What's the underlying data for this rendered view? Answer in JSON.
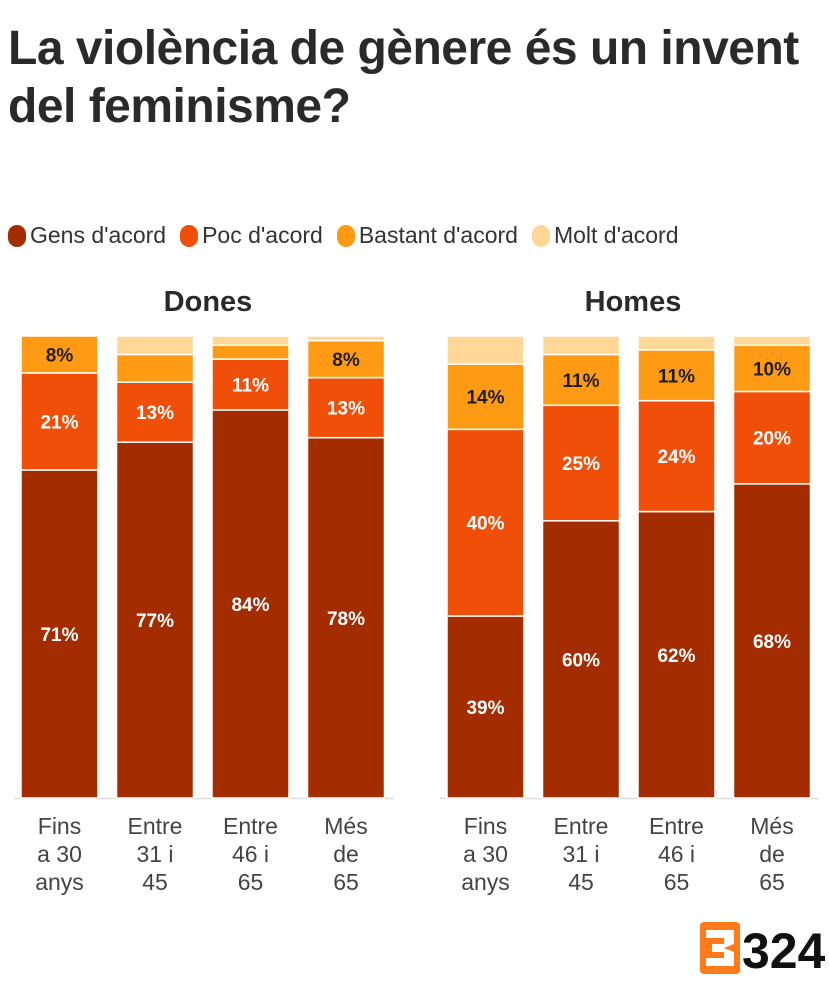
{
  "chart_data": {
    "type": "bar",
    "stacked": true,
    "title": "La violència de gènere és un invent del feminisme?",
    "legend_position": "top",
    "categories": [
      [
        "Fins",
        "a 30",
        "anys"
      ],
      [
        "Entre",
        "31 i",
        "45"
      ],
      [
        "Entre",
        "46 i",
        "65"
      ],
      [
        "Més",
        "de",
        "65"
      ]
    ],
    "series_names": [
      "Gens d'acord",
      "Poc d'acord",
      "Bastant d'acord",
      "Molt d'acord"
    ],
    "colors": [
      "#a32c00",
      "#f04f0a",
      "#ff9a14",
      "#ffd797"
    ],
    "label_colors": [
      "#ffffff",
      "#ffffff",
      "#1e1e1e",
      "#1e1e1e"
    ],
    "ylim": [
      0,
      100
    ],
    "panels": [
      {
        "name": "Dones",
        "values": [
          [
            71,
            21,
            8,
            0
          ],
          [
            77,
            13,
            6,
            4
          ],
          [
            84,
            11,
            3,
            2
          ],
          [
            78,
            13,
            8,
            1
          ]
        ],
        "labels": [
          [
            "71%",
            "21%",
            "8%",
            ""
          ],
          [
            "77%",
            "13%",
            "",
            ""
          ],
          [
            "84%",
            "11%",
            "",
            ""
          ],
          [
            "78%",
            "13%",
            "8%",
            ""
          ]
        ]
      },
      {
        "name": "Homes",
        "values": [
          [
            39,
            40,
            14,
            6
          ],
          [
            60,
            25,
            11,
            4
          ],
          [
            62,
            24,
            11,
            3
          ],
          [
            68,
            20,
            10,
            2
          ]
        ],
        "labels": [
          [
            "39%",
            "40%",
            "14%",
            ""
          ],
          [
            "60%",
            "25%",
            "11%",
            ""
          ],
          [
            "62%",
            "24%",
            "11%",
            ""
          ],
          [
            "68%",
            "20%",
            "10%",
            ""
          ]
        ]
      }
    ]
  },
  "logo": {
    "icon": "3cat-324-logo",
    "text": "324"
  }
}
